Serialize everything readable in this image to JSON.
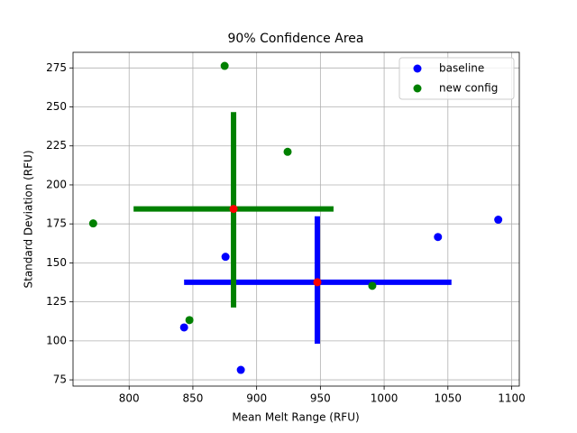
{
  "chart_data": {
    "type": "scatter",
    "title": "90% Confidence Area",
    "xlabel": "Mean Melt Range (RFU)",
    "ylabel": "Standard Deviation (RFU)",
    "xlim": [
      756,
      1106
    ],
    "ylim": [
      71,
      285
    ],
    "xticks": [
      800,
      850,
      900,
      950,
      1000,
      1050,
      1100
    ],
    "yticks": [
      75,
      100,
      125,
      150,
      175,
      200,
      225,
      250,
      275
    ],
    "grid": true,
    "legend": "upper right",
    "center_color": "red",
    "series": [
      {
        "name": "baseline",
        "color": "blue",
        "x": [
          843.1,
          875.6,
          887.6,
          1042.2,
          1089.5
        ],
        "values": [
          108.6,
          153.9,
          81.4,
          166.6,
          177.7
        ],
        "center": {
          "x": 947.6,
          "y": 137.6
        },
        "x_interval": [
          843.1,
          1052.8
        ],
        "y_interval": [
          98.2,
          179.9
        ]
      },
      {
        "name": "new config",
        "color": "green",
        "x": [
          771.8,
          874.9,
          924.3,
          847.3,
          990.7
        ],
        "values": [
          175.3,
          276.3,
          221.2,
          113.3,
          135.3
        ],
        "center": {
          "x": 881.9,
          "y": 184.6
        },
        "x_interval": [
          803.5,
          960.3
        ],
        "y_interval": [
          121.4,
          246.7
        ]
      }
    ]
  }
}
